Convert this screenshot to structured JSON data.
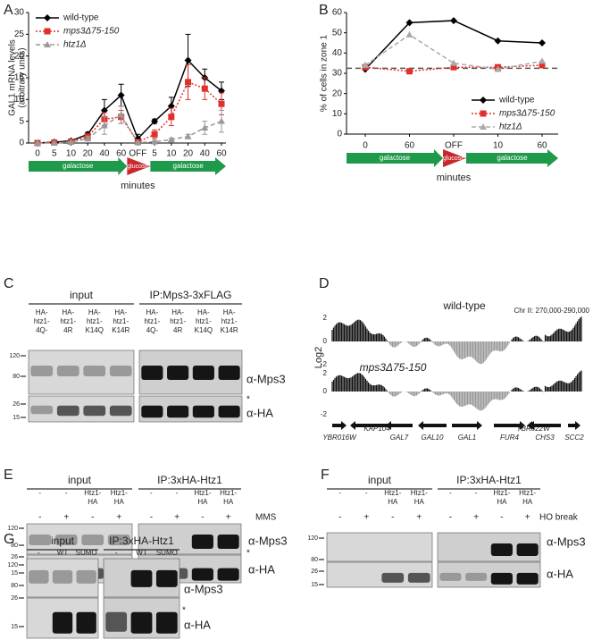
{
  "chart_data": [
    {
      "type": "line",
      "label": "A",
      "categories": [
        "0",
        "5",
        "10",
        "20",
        "40",
        "60",
        "OFF",
        "5",
        "10",
        "20",
        "40",
        "60"
      ],
      "series": [
        {
          "name": "wild-type",
          "color": "#000000",
          "marker": "diamond",
          "dash": "solid",
          "values": [
            0,
            0.2,
            0.5,
            2,
            7.5,
            11,
            1,
            5,
            8.5,
            19,
            15,
            12
          ],
          "errors": [
            0,
            0.2,
            0.3,
            0.5,
            2.5,
            2.5,
            1,
            0.5,
            2,
            6,
            2,
            2
          ]
        },
        {
          "name": "mps3Δ75-150",
          "color": "#e0302a",
          "marker": "square",
          "dash": "dotted",
          "values": [
            0,
            0.1,
            0.3,
            1.5,
            5.5,
            6,
            0.2,
            2,
            6,
            14,
            12.5,
            9
          ],
          "errors": [
            0,
            0.1,
            0.2,
            0.5,
            1.5,
            1.5,
            0.2,
            1,
            2,
            4,
            2.5,
            2.5
          ]
        },
        {
          "name": "htz1Δ",
          "color": "#999999",
          "marker": "triangle",
          "dash": "dashed",
          "values": [
            0,
            0,
            0.2,
            1,
            4,
            6.5,
            0.1,
            0.3,
            0.8,
            1.5,
            3.5,
            5
          ],
          "errors": [
            0,
            0,
            0.1,
            0.5,
            2,
            2,
            0.1,
            0.2,
            0.3,
            0.5,
            1.5,
            2.5
          ]
        }
      ],
      "ylim": [
        0,
        30
      ],
      "yticks": [
        0,
        5,
        10,
        15,
        20,
        25,
        30
      ],
      "y_label": [
        "GAL1 mRNA levels",
        "(arbitrary units)"
      ],
      "x_label": "minutes",
      "timeline": [
        "galactose",
        "glucose",
        "galactose"
      ],
      "legend": "upper left"
    },
    {
      "type": "line",
      "label": "B",
      "categories": [
        "0",
        "60",
        "OFF",
        "10",
        "60"
      ],
      "series": [
        {
          "name": "wild-type",
          "color": "#000000",
          "marker": "diamond",
          "dash": "solid",
          "values": [
            32,
            55,
            56,
            46,
            45
          ]
        },
        {
          "name": "mps3Δ75-150",
          "color": "#e0302a",
          "marker": "square",
          "dash": "dotted",
          "values": [
            33,
            31,
            33,
            33,
            34
          ]
        },
        {
          "name": "htz1Δ",
          "color": "#aaaaaa",
          "marker": "triangle",
          "dash": "dashed",
          "values": [
            34,
            49,
            35,
            32,
            36
          ]
        }
      ],
      "ylim": [
        0,
        60
      ],
      "yticks": [
        0,
        10,
        20,
        30,
        40,
        50,
        60
      ],
      "reference_line": 32.5,
      "y_label": [
        "% of cells in zone 1"
      ],
      "x_label": "minutes",
      "timeline": [
        "galactose",
        "glucose",
        "galactose"
      ],
      "legend": "lower right"
    }
  ],
  "track": {
    "label": "D",
    "tracks": [
      "wild-type",
      "mps3Δ75-150"
    ],
    "region": "Chr II: 270,000-290,000",
    "y_label": "Log2",
    "ticks": [
      "2",
      "0",
      "-2"
    ],
    "genes": [
      "YBR016W",
      "KAP104",
      "GAL7",
      "GAL10",
      "GAL1",
      "FUR4",
      "YBR022W",
      "CHS3",
      "SCC2"
    ]
  },
  "blots": [
    {
      "label": "C",
      "groups": [
        {
          "name": "input",
          "lanes": [
            [
              "HA-",
              "htz1-",
              "4Q-"
            ],
            [
              "HA-",
              "htz1-",
              "4R"
            ],
            [
              "HA-",
              "htz1-",
              "K14Q"
            ],
            [
              "HA-",
              "htz1-",
              "K14R"
            ]
          ]
        },
        {
          "name": "IP:Mps3-3xFLAG",
          "lanes": [
            [
              "HA-",
              "htz1-",
              "4Q-"
            ],
            [
              "HA-",
              "htz1-",
              "4R"
            ],
            [
              "HA-",
              "htz1-",
              "K14Q"
            ],
            [
              "HA-",
              "htz1-",
              "K14R"
            ]
          ]
        }
      ],
      "markers": [
        120,
        80,
        26,
        15
      ],
      "probes": [
        "α-Mps3",
        "α-HA"
      ],
      "note": "*"
    },
    {
      "label": "E",
      "groups": [
        {
          "name": "input",
          "lanes": [
            [
              "-"
            ],
            [
              "-"
            ],
            [
              "Htz1-",
              "HA"
            ],
            [
              "Htz1-",
              "HA"
            ]
          ],
          "signs": [
            "-",
            "+",
            "-",
            "+"
          ]
        },
        {
          "name": "IP:3xHA-Htz1",
          "lanes": [
            [
              "-"
            ],
            [
              "-"
            ],
            [
              "Htz1-",
              "HA"
            ],
            [
              "Htz1-",
              "HA"
            ]
          ],
          "signs": [
            "-",
            "+",
            "-",
            "+"
          ]
        }
      ],
      "treatment": "MMS",
      "markers": [
        120,
        80,
        26,
        15
      ],
      "probes": [
        "α-Mps3",
        "α-HA"
      ],
      "note": "*"
    },
    {
      "label": "F",
      "groups": [
        {
          "name": "input",
          "lanes": [
            [
              "-"
            ],
            [
              "-"
            ],
            [
              "Htz1-",
              "HA"
            ],
            [
              "Htz1-",
              "HA"
            ]
          ],
          "signs": [
            "-",
            "+",
            "-",
            "+"
          ]
        },
        {
          "name": "IP:3xHA-Htz1",
          "lanes": [
            [
              "-"
            ],
            [
              "-"
            ],
            [
              "Htz1-",
              "HA"
            ],
            [
              "Htz1-",
              "HA"
            ]
          ],
          "signs": [
            "-",
            "+",
            "-",
            "+"
          ]
        }
      ],
      "treatment": "HO break",
      "markers": [
        120,
        80,
        26,
        15
      ],
      "probes": [
        "α-Mps3",
        "α-HA"
      ]
    },
    {
      "label": "G",
      "groups": [
        {
          "name": "input",
          "lanes": [
            [
              "-"
            ],
            [
              "WT"
            ],
            [
              "SUMO"
            ]
          ]
        },
        {
          "name": "IP:3xHA-Htz1",
          "lanes": [
            [
              "-"
            ],
            [
              "WT"
            ],
            [
              "SUMO"
            ]
          ]
        }
      ],
      "markers": [
        120,
        80,
        26,
        15
      ],
      "probes": [
        "α-Mps3",
        "α-HA"
      ],
      "note": "*"
    }
  ]
}
